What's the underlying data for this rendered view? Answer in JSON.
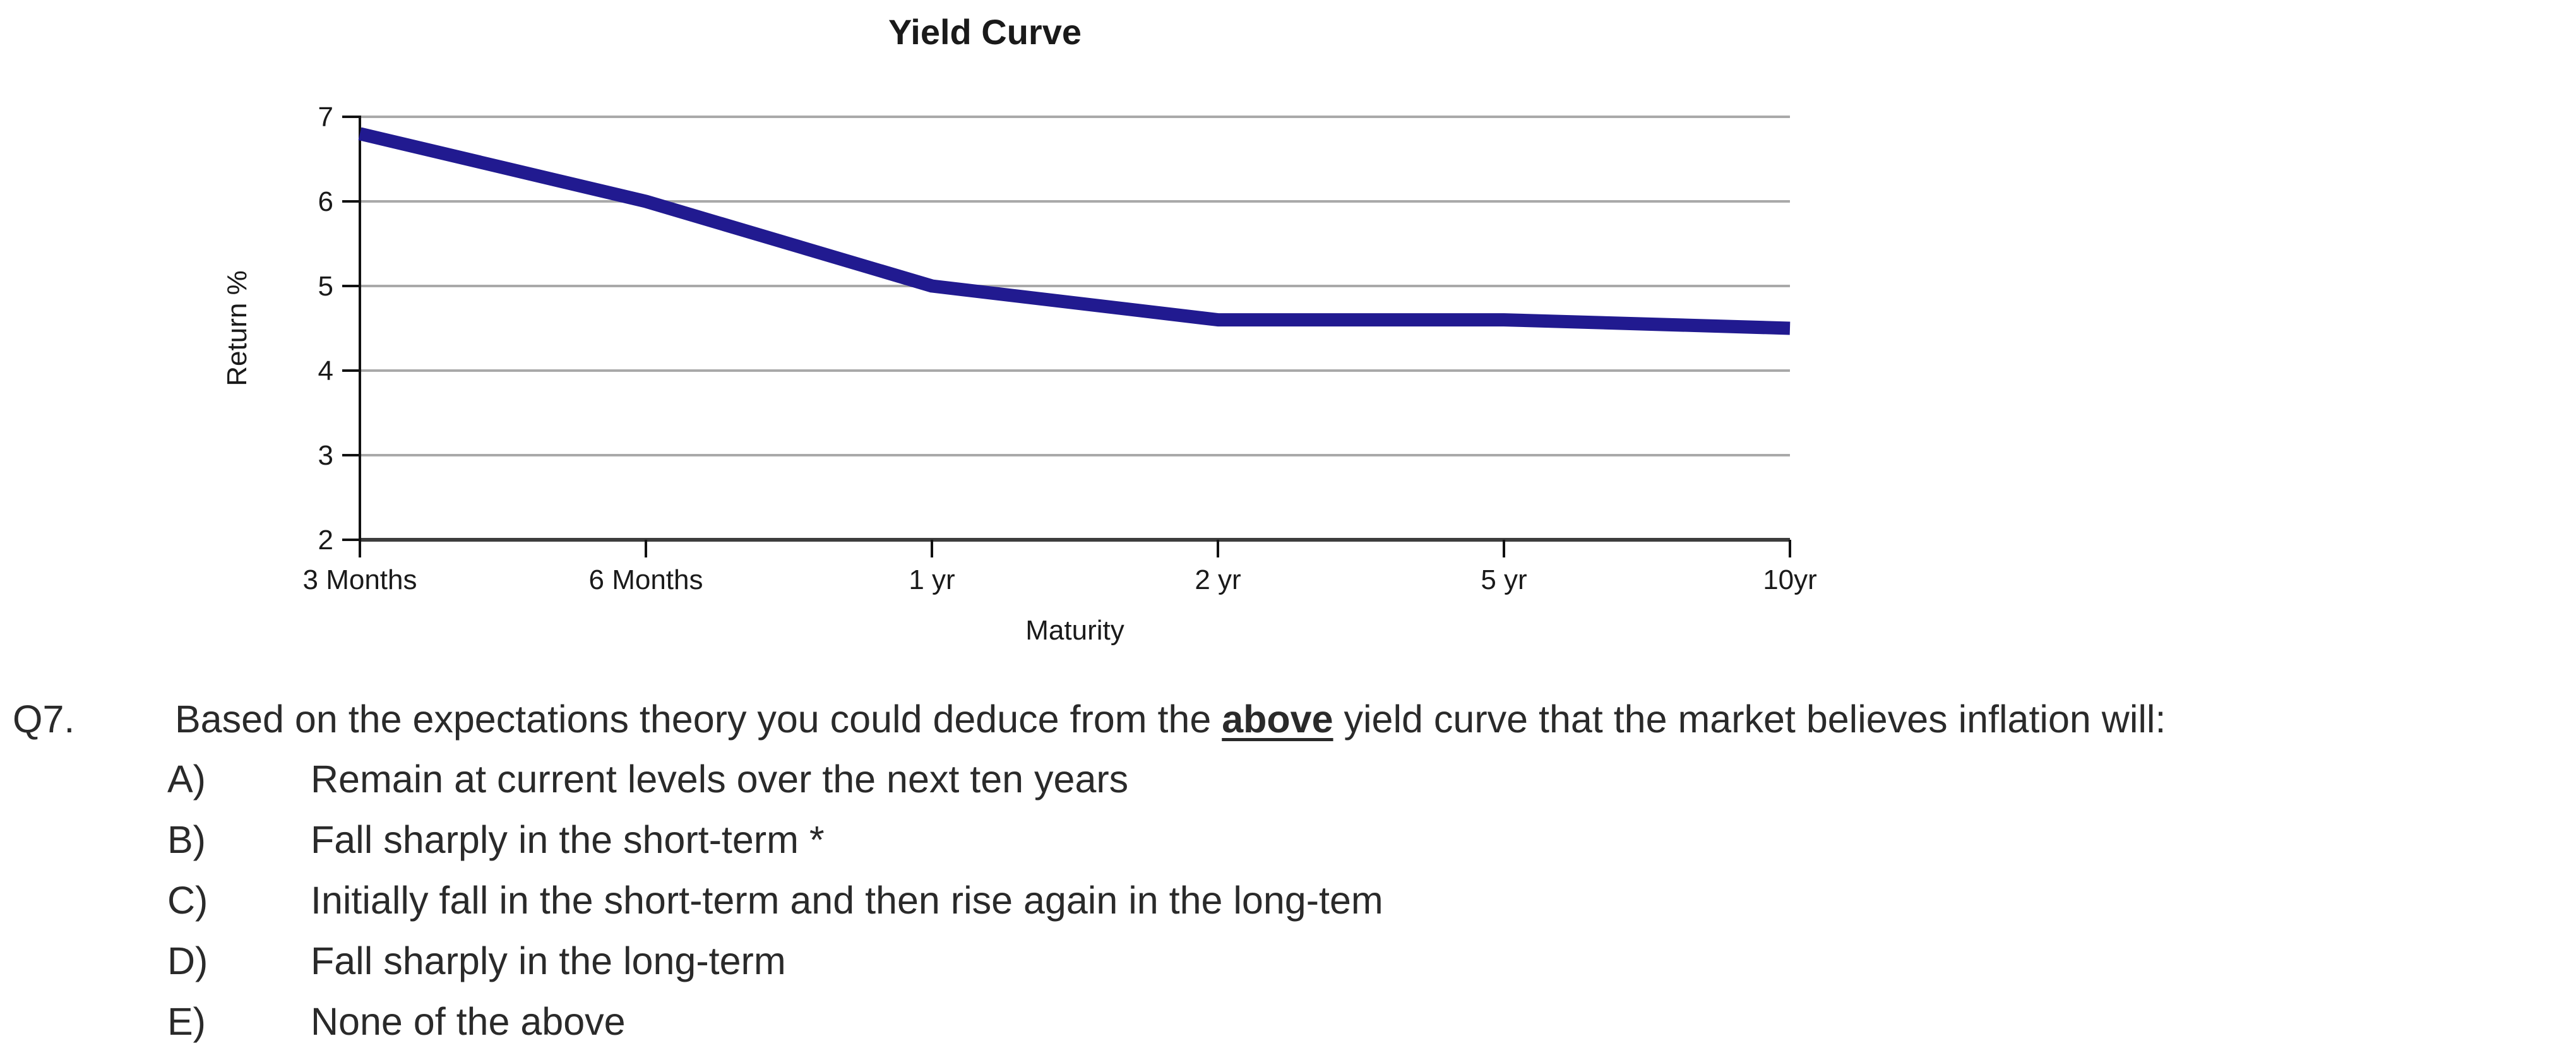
{
  "page": {
    "background": "#ffffff",
    "text_color": "#2a2a2a"
  },
  "chart_data": {
    "type": "line",
    "title": "Yield Curve",
    "xlabel": "Maturity",
    "ylabel": "Return %",
    "categories": [
      "3 Months",
      "6 Months",
      "1 yr",
      "2 yr",
      "5 yr",
      "10yr"
    ],
    "series": [
      {
        "name": "Yield Curve",
        "values": [
          6.8,
          6.0,
          5.0,
          4.6,
          4.6,
          4.5
        ],
        "color": "#211a90"
      }
    ],
    "ylim": [
      2,
      7
    ],
    "yticks": [
      2,
      3,
      4,
      5,
      6,
      7
    ],
    "grid": true,
    "legend": "none",
    "gridline_color": "#a9a9a9",
    "baseline_color": "#3d3d3d",
    "axis_color": "#111111",
    "label_color": "#1a1a1a"
  },
  "question": {
    "number": "Q7.",
    "text_before": "Based on the expectations theory you could deduce from the ",
    "text_emphasis": "above",
    "text_after": " yield curve that the market believes inflation will:",
    "options": [
      {
        "letter": "A)",
        "text": "Remain at current levels over the next ten years"
      },
      {
        "letter": "B)",
        "text": "Fall sharply in the short-term *"
      },
      {
        "letter": "C)",
        "text": "Initially fall in the short-term and then rise again in the long-tem"
      },
      {
        "letter": "D)",
        "text": "Fall sharply in the long-term"
      },
      {
        "letter": "E)",
        "text": "None of the above"
      }
    ]
  }
}
